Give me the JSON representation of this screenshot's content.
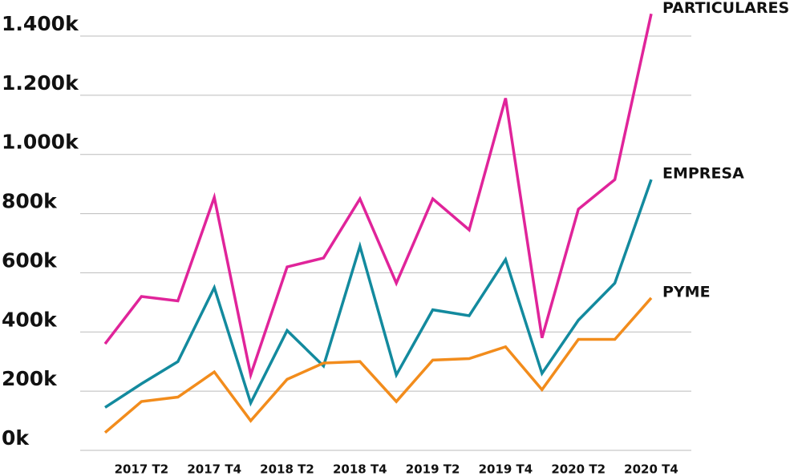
{
  "chart_data": {
    "type": "line",
    "categories": [
      null,
      "2017 T2",
      null,
      "2017 T4",
      null,
      "2018 T2",
      null,
      "2018 T4",
      null,
      "2019 T2",
      null,
      "2019 T4",
      null,
      "2020 T2",
      null,
      "2020 T4"
    ],
    "series": [
      {
        "name": "PARTICULARES",
        "color": "#e0249a",
        "values": [
          360,
          520,
          505,
          855,
          255,
          620,
          650,
          850,
          565,
          850,
          745,
          1190,
          380,
          815,
          915,
          1475
        ]
      },
      {
        "name": "EMPRESA",
        "color": "#138a9e",
        "values": [
          145,
          225,
          300,
          550,
          160,
          405,
          285,
          690,
          255,
          475,
          455,
          645,
          260,
          440,
          565,
          915
        ]
      },
      {
        "name": "PYME",
        "color": "#f28c1c",
        "values": [
          60,
          165,
          180,
          265,
          100,
          240,
          295,
          300,
          165,
          305,
          310,
          350,
          205,
          375,
          375,
          515
        ]
      }
    ],
    "ylim": [
      0,
      1400
    ],
    "yticks": [
      {
        "value": 0,
        "label": "0k"
      },
      {
        "value": 200,
        "label": "200k"
      },
      {
        "value": 400,
        "label": "400k"
      },
      {
        "value": 600,
        "label": "600k"
      },
      {
        "value": 800,
        "label": "800k"
      },
      {
        "value": 1000,
        "label": "1.000k"
      },
      {
        "value": 1200,
        "label": "1.200k"
      },
      {
        "value": 1400,
        "label": "1.400k"
      }
    ],
    "grid": true
  }
}
